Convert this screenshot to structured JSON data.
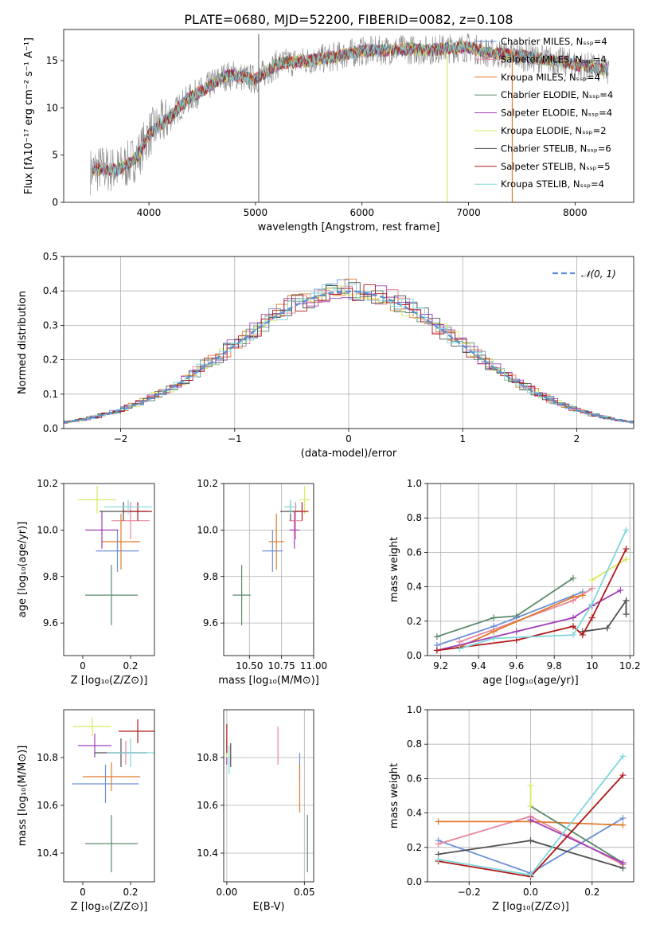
{
  "figure": {
    "title": "PLATE=0680, MJD=52200, FIBERID=0082, z=0.108"
  },
  "chart_data": [
    {
      "id": "spectrum",
      "type": "line",
      "xlabel": "wavelength [Angstrom, rest frame]",
      "ylabel": "Flux [fλ10⁻¹⁷ erg cm⁻² s⁻¹ A⁻¹]",
      "xlim": [
        3200,
        8550
      ],
      "ylim": [
        0,
        18.3
      ],
      "xticks": [
        4000,
        5000,
        6000,
        7000,
        8000
      ],
      "yticks": [
        0,
        5,
        10,
        15
      ],
      "legend_position": "top-right",
      "legend": [
        {
          "label": "Chabrier MILES, Nₛₛₚ=4",
          "color": "#6b8fd6"
        },
        {
          "label": "Salpeter MILES, Nₛₛₚ=4",
          "color": "#e8849b"
        },
        {
          "label": "Kroupa MILES, Nₛₛₚ=4",
          "color": "#e07a2b"
        },
        {
          "label": "Chabrier ELODIE, Nₛₛₚ=4",
          "color": "#5a8a6a"
        },
        {
          "label": "Salpeter ELODIE, Nₛₛₚ=4",
          "color": "#a040b8"
        },
        {
          "label": "Kroupa ELODIE, Nₛₛₚ=2",
          "color": "#d8e860"
        },
        {
          "label": "Chabrier STELIB, Nₛₛₚ=6",
          "color": "#505050"
        },
        {
          "label": "Salpeter STELIB, Nₛₛₚ=5",
          "color": "#b01818"
        },
        {
          "label": "Kroupa STELIB, Nₛₛₚ=4",
          "color": "#7ed6dc"
        }
      ],
      "continuum": {
        "x": [
          3450,
          3550,
          3700,
          3800,
          3900,
          4000,
          4100,
          4200,
          4300,
          4400,
          4500,
          4600,
          4700,
          4800,
          4900,
          5000,
          5100,
          5200,
          5300,
          5500,
          5700,
          5900,
          6000,
          6200,
          6400,
          6600,
          6800,
          7000,
          7200,
          7400,
          7600,
          7800,
          8000,
          8200,
          8320
        ],
        "y": [
          3.3,
          3.6,
          3.4,
          4.0,
          5.0,
          7.2,
          8.2,
          9.0,
          10.3,
          11.2,
          11.8,
          12.6,
          13.3,
          13.5,
          13.2,
          13.0,
          13.8,
          14.6,
          14.8,
          15.0,
          15.3,
          15.8,
          16.0,
          16.1,
          16.2,
          16.1,
          16.3,
          16.4,
          15.8,
          15.6,
          15.3,
          15.0,
          14.6,
          14.2,
          13.9
        ]
      },
      "features": [
        {
          "x": 5030,
          "y": 0,
          "note": "spike"
        },
        {
          "x": 6800,
          "y": 0,
          "note": "dip"
        },
        {
          "x": 7410,
          "y": 0,
          "note": "dip"
        }
      ]
    },
    {
      "id": "residual_hist",
      "type": "line",
      "xlabel": "(data-model)/error",
      "ylabel": "Normed distribution",
      "xlim": [
        -2.5,
        2.5
      ],
      "ylim": [
        0,
        0.5
      ],
      "xticks": [
        -2,
        -1,
        0,
        1,
        2
      ],
      "yticks": [
        0.0,
        0.1,
        0.2,
        0.3,
        0.4,
        0.5
      ],
      "legend_position": "top-right",
      "legend": [
        {
          "label": "𝒩(0, 1)",
          "color": "#5b8fd6"
        }
      ],
      "bin_width": 0.1
    },
    {
      "id": "age_vs_Z",
      "type": "scatter",
      "xlabel": "Z [log₁₀(Z/Z⊙)]",
      "ylabel": "age  [log₁₀(age/yr)]",
      "xlim": [
        -0.08,
        0.3
      ],
      "ylim": [
        9.46,
        10.2
      ],
      "xticks": [
        0.0,
        0.2
      ],
      "yticks": [
        9.6,
        9.8,
        10.0,
        10.2
      ],
      "points": [
        {
          "series": "Chabrier MILES",
          "x": 0.145,
          "y": 9.91,
          "xerr": 0.09,
          "yerr": 0.09
        },
        {
          "series": "Salpeter MILES",
          "x": 0.2,
          "y": 10.04,
          "xerr": 0.08,
          "yerr": 0.08
        },
        {
          "series": "Kroupa MILES",
          "x": 0.16,
          "y": 9.95,
          "xerr": 0.08,
          "yerr": 0.12
        },
        {
          "series": "Chabrier ELODIE",
          "x": 0.12,
          "y": 9.72,
          "xerr": 0.11,
          "yerr": 0.13
        },
        {
          "series": "Salpeter ELODIE",
          "x": 0.08,
          "y": 10.0,
          "xerr": 0.07,
          "yerr": 0.08
        },
        {
          "series": "Kroupa ELODIE",
          "x": 0.06,
          "y": 10.13,
          "xerr": 0.08,
          "yerr": 0.06
        },
        {
          "series": "Chabrier STELIB",
          "x": 0.17,
          "y": 10.08,
          "xerr": 0.1,
          "yerr": 0.04
        },
        {
          "series": "Salpeter STELIB",
          "x": 0.23,
          "y": 10.08,
          "xerr": 0.06,
          "yerr": 0.04
        },
        {
          "series": "Kroupa STELIB",
          "x": 0.19,
          "y": 10.1,
          "xerr": 0.1,
          "yerr": 0.03
        }
      ]
    },
    {
      "id": "age_vs_mass",
      "type": "scatter",
      "xlabel": "mass [log₁₀(M/M⊙)]",
      "ylabel": "",
      "xlim": [
        10.3,
        11.0
      ],
      "ylim": [
        9.46,
        10.2
      ],
      "xticks": [
        10.5,
        10.75,
        11.0
      ],
      "xticklabels": [
        "10.50",
        "10.75",
        "11.00"
      ],
      "yticks": [
        9.6,
        9.8,
        10.0,
        10.2
      ],
      "points": [
        {
          "series": "Chabrier MILES",
          "x": 10.68,
          "y": 9.91,
          "xerr": 0.08,
          "yerr": 0.09
        },
        {
          "series": "Salpeter MILES",
          "x": 10.86,
          "y": 10.04,
          "xerr": 0.05,
          "yerr": 0.08
        },
        {
          "series": "Kroupa MILES",
          "x": 10.71,
          "y": 9.95,
          "xerr": 0.06,
          "yerr": 0.12
        },
        {
          "series": "Chabrier ELODIE",
          "x": 10.44,
          "y": 9.72,
          "xerr": 0.07,
          "yerr": 0.13
        },
        {
          "series": "Salpeter ELODIE",
          "x": 10.85,
          "y": 10.0,
          "xerr": 0.04,
          "yerr": 0.08
        },
        {
          "series": "Kroupa ELODIE",
          "x": 10.93,
          "y": 10.13,
          "xerr": 0.04,
          "yerr": 0.06
        },
        {
          "series": "Chabrier STELIB",
          "x": 10.82,
          "y": 10.08,
          "xerr": 0.08,
          "yerr": 0.04
        },
        {
          "series": "Salpeter STELIB",
          "x": 10.91,
          "y": 10.08,
          "xerr": 0.05,
          "yerr": 0.04
        },
        {
          "series": "Kroupa STELIB",
          "x": 10.82,
          "y": 10.1,
          "xerr": 0.05,
          "yerr": 0.03
        }
      ]
    },
    {
      "id": "massweight_vs_age",
      "type": "line",
      "xlabel": "age  [log₁₀(age/yr)]",
      "ylabel": "mass weight",
      "xlim": [
        9.13,
        10.22
      ],
      "ylim": [
        0.0,
        1.0
      ],
      "xticks": [
        9.2,
        9.4,
        9.6,
        9.8,
        10.0,
        10.2
      ],
      "yticks": [
        0.0,
        0.2,
        0.4,
        0.6,
        0.8,
        1.0
      ],
      "series": [
        {
          "name": "Chabrier MILES",
          "x": [
            9.18,
            9.48,
            9.6,
            9.95
          ],
          "y": [
            0.06,
            0.17,
            0.22,
            0.37
          ]
        },
        {
          "name": "Salpeter MILES",
          "x": [
            9.3,
            9.6,
            9.9,
            10.0
          ],
          "y": [
            0.08,
            0.2,
            0.32,
            0.39
          ]
        },
        {
          "name": "Kroupa MILES",
          "x": [
            9.3,
            9.48,
            9.9,
            9.95
          ],
          "y": [
            0.05,
            0.14,
            0.34,
            0.35
          ]
        },
        {
          "name": "Chabrier ELODIE",
          "x": [
            9.18,
            9.48,
            9.6,
            9.9
          ],
          "y": [
            0.11,
            0.22,
            0.23,
            0.45
          ]
        },
        {
          "name": "Salpeter ELODIE",
          "x": [
            9.18,
            9.6,
            9.9,
            10.0,
            10.15
          ],
          "y": [
            0.03,
            0.14,
            0.22,
            0.29,
            0.38
          ]
        },
        {
          "name": "Kroupa ELODIE",
          "x": [
            10.0,
            10.18
          ],
          "y": [
            0.44,
            0.56
          ]
        },
        {
          "name": "Chabrier STELIB",
          "x": [
            9.95,
            10.08,
            10.18,
            10.18
          ],
          "y": [
            0.14,
            0.16,
            0.32,
            0.24
          ]
        },
        {
          "name": "Salpeter STELIB",
          "x": [
            9.18,
            9.6,
            9.9,
            9.95,
            10.0,
            10.18
          ],
          "y": [
            0.03,
            0.09,
            0.17,
            0.12,
            0.22,
            0.62
          ]
        },
        {
          "name": "Kroupa STELIB",
          "x": [
            9.3,
            9.48,
            9.9,
            10.0,
            10.18
          ],
          "y": [
            0.04,
            0.1,
            0.12,
            0.3,
            0.73
          ]
        }
      ]
    },
    {
      "id": "mass_vs_Z",
      "type": "scatter",
      "xlabel": "Z [log₁₀(Z/Z⊙)]",
      "ylabel": "mass [log₁₀(M/M⊙)]",
      "xlim": [
        -0.08,
        0.3
      ],
      "ylim": [
        10.28,
        11.0
      ],
      "xticks": [
        0.0,
        0.2
      ],
      "yticks": [
        10.4,
        10.6,
        10.8
      ],
      "points": [
        {
          "series": "Chabrier MILES",
          "x": 0.095,
          "y": 10.69,
          "xerr": 0.14,
          "yerr": 0.08
        },
        {
          "series": "Salpeter MILES",
          "x": 0.18,
          "y": 10.82,
          "xerr": 0.08,
          "yerr": 0.05
        },
        {
          "series": "Kroupa MILES",
          "x": 0.12,
          "y": 10.72,
          "xerr": 0.12,
          "yerr": 0.06
        },
        {
          "series": "Chabrier ELODIE",
          "x": 0.12,
          "y": 10.44,
          "xerr": 0.11,
          "yerr": 0.12
        },
        {
          "series": "Salpeter ELODIE",
          "x": 0.05,
          "y": 10.85,
          "xerr": 0.07,
          "yerr": 0.05
        },
        {
          "series": "Kroupa ELODIE",
          "x": 0.04,
          "y": 10.93,
          "xerr": 0.08,
          "yerr": 0.04
        },
        {
          "series": "Chabrier STELIB",
          "x": 0.16,
          "y": 10.82,
          "xerr": 0.11,
          "yerr": 0.06
        },
        {
          "series": "Salpeter STELIB",
          "x": 0.23,
          "y": 10.91,
          "xerr": 0.08,
          "yerr": 0.05
        },
        {
          "series": "Kroupa STELIB",
          "x": 0.2,
          "y": 10.82,
          "xerr": 0.1,
          "yerr": 0.06
        }
      ]
    },
    {
      "id": "mass_vs_EBV",
      "type": "scatter",
      "xlabel": "E(B-V)",
      "ylabel": "",
      "xlim": [
        -0.002,
        0.056
      ],
      "ylim": [
        10.28,
        11.0
      ],
      "xticks": [
        0.0,
        0.05
      ],
      "xticklabels": [
        "0.00",
        "0.05"
      ],
      "yticks": [
        10.4,
        10.6,
        10.8
      ],
      "points": [
        {
          "series": "Chabrier MILES",
          "x": 0.047,
          "y": 10.76,
          "yerr": 0.06
        },
        {
          "series": "Salpeter MILES",
          "x": 0.033,
          "y": 10.85,
          "yerr": 0.08
        },
        {
          "series": "Kroupa MILES",
          "x": 0.047,
          "y": 10.67,
          "yerr": 0.1
        },
        {
          "series": "Chabrier ELODIE",
          "x": 0.052,
          "y": 10.44,
          "yerr": 0.12
        },
        {
          "series": "Salpeter ELODIE",
          "x": 0.0,
          "y": 10.82,
          "yerr": 0.05
        },
        {
          "series": "Kroupa ELODIE",
          "x": 0.0,
          "y": 10.85,
          "yerr": 0.05
        },
        {
          "series": "Chabrier STELIB",
          "x": 0.0025,
          "y": 10.81,
          "yerr": 0.05
        },
        {
          "series": "Salpeter STELIB",
          "x": 0.0,
          "y": 10.88,
          "yerr": 0.06
        },
        {
          "series": "Kroupa STELIB",
          "x": 0.0015,
          "y": 10.79,
          "yerr": 0.06
        }
      ]
    },
    {
      "id": "massweight_vs_Z",
      "type": "line",
      "xlabel": "Z [log₁₀(Z/Z⊙)]",
      "ylabel": "mass weight",
      "xlim": [
        -0.335,
        0.335
      ],
      "ylim": [
        0.0,
        1.0
      ],
      "xticks": [
        -0.2,
        0.0,
        0.2
      ],
      "xticklabels": [
        "−0.2",
        "0.0",
        "0.2"
      ],
      "yticks": [
        0.0,
        0.2,
        0.4,
        0.6,
        0.8,
        1.0
      ],
      "series": [
        {
          "name": "Chabrier MILES",
          "x": [
            -0.3,
            0.0,
            0.3
          ],
          "y": [
            0.24,
            0.05,
            0.37
          ]
        },
        {
          "name": "Salpeter MILES",
          "x": [
            -0.3,
            0.0,
            0.3
          ],
          "y": [
            0.22,
            0.38,
            0.1
          ]
        },
        {
          "name": "Kroupa MILES",
          "x": [
            -0.3,
            0.0,
            0.3
          ],
          "y": [
            0.35,
            0.35,
            0.33
          ]
        },
        {
          "name": "Chabrier ELODIE",
          "x": [
            0.0,
            0.3
          ],
          "y": [
            0.44,
            0.11
          ]
        },
        {
          "name": "Salpeter ELODIE",
          "x": [
            0.0,
            0.3
          ],
          "y": [
            0.36,
            0.11
          ]
        },
        {
          "name": "Kroupa ELODIE",
          "x": [
            0.0,
            0.0
          ],
          "y": [
            0.56,
            0.44
          ]
        },
        {
          "name": "Chabrier STELIB",
          "x": [
            -0.3,
            0.0,
            0.3
          ],
          "y": [
            0.16,
            0.24,
            0.08
          ]
        },
        {
          "name": "Salpeter STELIB",
          "x": [
            -0.3,
            0.0,
            0.3
          ],
          "y": [
            0.12,
            0.03,
            0.62
          ]
        },
        {
          "name": "Kroupa STELIB",
          "x": [
            -0.3,
            0.0,
            0.3
          ],
          "y": [
            0.13,
            0.04,
            0.73
          ]
        }
      ]
    }
  ]
}
